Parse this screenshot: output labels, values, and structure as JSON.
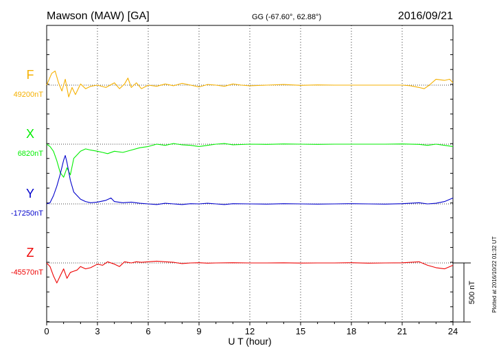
{
  "header": {
    "station": "Mawson (MAW)  [GA]",
    "coords": "GG (-67.60°,  62.88°)",
    "date": "2016/09/21"
  },
  "footer_note": "Plotted at 2016/10/22 01:32 UT",
  "chart_data": {
    "type": "line",
    "title": "Mawson (MAW)  [GA]",
    "xlabel": "U T (hour)",
    "xlim": [
      0,
      24
    ],
    "xticks": [
      0,
      3,
      6,
      9,
      12,
      15,
      18,
      21,
      24
    ],
    "grid": "vertical dotted every 3 h",
    "scale_bar": {
      "label": "500 nT",
      "value": 500
    },
    "series": [
      {
        "name": "F",
        "baseline_label": "49200nT",
        "color": "#f5b000",
        "baseline": 49200,
        "x": [
          0,
          0.3,
          0.5,
          0.7,
          0.9,
          1.1,
          1.3,
          1.5,
          1.7,
          2.0,
          2.3,
          2.6,
          3.0,
          3.5,
          4.0,
          4.3,
          4.6,
          4.8,
          5.0,
          5.3,
          5.6,
          6.0,
          6.5,
          7.0,
          7.5,
          8.0,
          8.5,
          9.0,
          9.5,
          10.0,
          10.5,
          11.0,
          11.5,
          12.0,
          13.0,
          14.0,
          15.0,
          16.0,
          17.0,
          18.0,
          19.0,
          20.0,
          21.0,
          21.5,
          22.0,
          22.3,
          22.6,
          23.0,
          23.5,
          23.8,
          24.0
        ],
        "values": [
          49200,
          49300,
          49320,
          49220,
          49150,
          49250,
          49100,
          49180,
          49120,
          49210,
          49170,
          49190,
          49200,
          49180,
          49220,
          49170,
          49210,
          49260,
          49180,
          49220,
          49170,
          49200,
          49190,
          49210,
          49195,
          49215,
          49200,
          49185,
          49205,
          49200,
          49190,
          49210,
          49200,
          49195,
          49200,
          49205,
          49198,
          49202,
          49200,
          49200,
          49200,
          49200,
          49200,
          49195,
          49180,
          49170,
          49200,
          49250,
          49240,
          49250,
          49220
        ]
      },
      {
        "name": "X",
        "baseline_label": "6820nT",
        "color": "#00ee00",
        "baseline": 6820,
        "x": [
          0,
          0.2,
          0.4,
          0.6,
          0.8,
          1.0,
          1.2,
          1.4,
          1.6,
          1.8,
          2.0,
          2.3,
          2.6,
          3.0,
          3.3,
          3.6,
          4.0,
          4.5,
          5.0,
          5.5,
          6.0,
          6.5,
          7.0,
          7.5,
          8.0,
          8.5,
          9.0,
          9.5,
          10.0,
          10.5,
          11.0,
          12.0,
          13.0,
          14.0,
          15.0,
          16.0,
          17.0,
          18.0,
          19.0,
          20.0,
          21.0,
          22.0,
          22.5,
          23.0,
          23.5,
          24.0
        ],
        "values": [
          6820,
          6800,
          6760,
          6680,
          6580,
          6540,
          6620,
          6560,
          6700,
          6730,
          6760,
          6780,
          6770,
          6760,
          6750,
          6740,
          6760,
          6750,
          6770,
          6790,
          6800,
          6820,
          6810,
          6825,
          6815,
          6810,
          6800,
          6810,
          6820,
          6825,
          6815,
          6820,
          6818,
          6822,
          6820,
          6818,
          6820,
          6820,
          6820,
          6820,
          6822,
          6818,
          6810,
          6820,
          6810,
          6800
        ]
      },
      {
        "name": "Y",
        "baseline_label": "-17250nT",
        "color": "#0000cc",
        "baseline": -17250,
        "x": [
          0,
          0.2,
          0.4,
          0.6,
          0.8,
          1.0,
          1.1,
          1.2,
          1.4,
          1.6,
          1.8,
          2.0,
          2.3,
          2.6,
          3.0,
          3.5,
          3.8,
          4.0,
          4.5,
          5.0,
          5.5,
          6.0,
          6.5,
          7.0,
          7.5,
          8.0,
          8.5,
          9.0,
          9.5,
          10.0,
          10.5,
          11.0,
          12.0,
          13.0,
          14.0,
          15.0,
          16.0,
          17.0,
          18.0,
          19.0,
          20.0,
          21.0,
          22.0,
          22.5,
          23.0,
          23.5,
          24.0
        ],
        "values": [
          -17250,
          -17240,
          -17180,
          -17100,
          -17000,
          -16880,
          -16840,
          -16900,
          -17050,
          -17150,
          -17180,
          -17210,
          -17230,
          -17240,
          -17235,
          -17220,
          -17200,
          -17230,
          -17240,
          -17235,
          -17245,
          -17250,
          -17255,
          -17245,
          -17250,
          -17255,
          -17248,
          -17250,
          -17245,
          -17250,
          -17255,
          -17248,
          -17250,
          -17252,
          -17248,
          -17250,
          -17252,
          -17250,
          -17248,
          -17250,
          -17252,
          -17248,
          -17240,
          -17250,
          -17245,
          -17230,
          -17200
        ]
      },
      {
        "name": "Z",
        "baseline_label": "-45570nT",
        "color": "#ee0000",
        "baseline": -45570,
        "x": [
          0,
          0.2,
          0.4,
          0.6,
          0.8,
          1.0,
          1.2,
          1.4,
          1.6,
          1.8,
          2.0,
          2.3,
          2.6,
          3.0,
          3.3,
          3.6,
          4.0,
          4.3,
          4.6,
          5.0,
          5.3,
          5.6,
          6.0,
          6.5,
          7.0,
          7.5,
          8.0,
          8.5,
          9.0,
          9.5,
          10.0,
          11.0,
          12.0,
          13.0,
          14.0,
          15.0,
          16.0,
          17.0,
          18.0,
          19.0,
          20.0,
          21.0,
          22.0,
          22.5,
          23.0,
          23.5,
          24.0
        ],
        "values": [
          -45570,
          -45600,
          -45680,
          -45740,
          -45680,
          -45620,
          -45700,
          -45650,
          -45640,
          -45630,
          -45600,
          -45620,
          -45610,
          -45580,
          -45590,
          -45560,
          -45580,
          -45600,
          -45560,
          -45570,
          -45560,
          -45565,
          -45560,
          -45555,
          -45560,
          -45565,
          -45575,
          -45570,
          -45568,
          -45572,
          -45570,
          -45568,
          -45570,
          -45570,
          -45569,
          -45571,
          -45570,
          -45570,
          -45568,
          -45572,
          -45570,
          -45569,
          -45560,
          -45590,
          -45610,
          -45620,
          -45590
        ]
      }
    ]
  }
}
